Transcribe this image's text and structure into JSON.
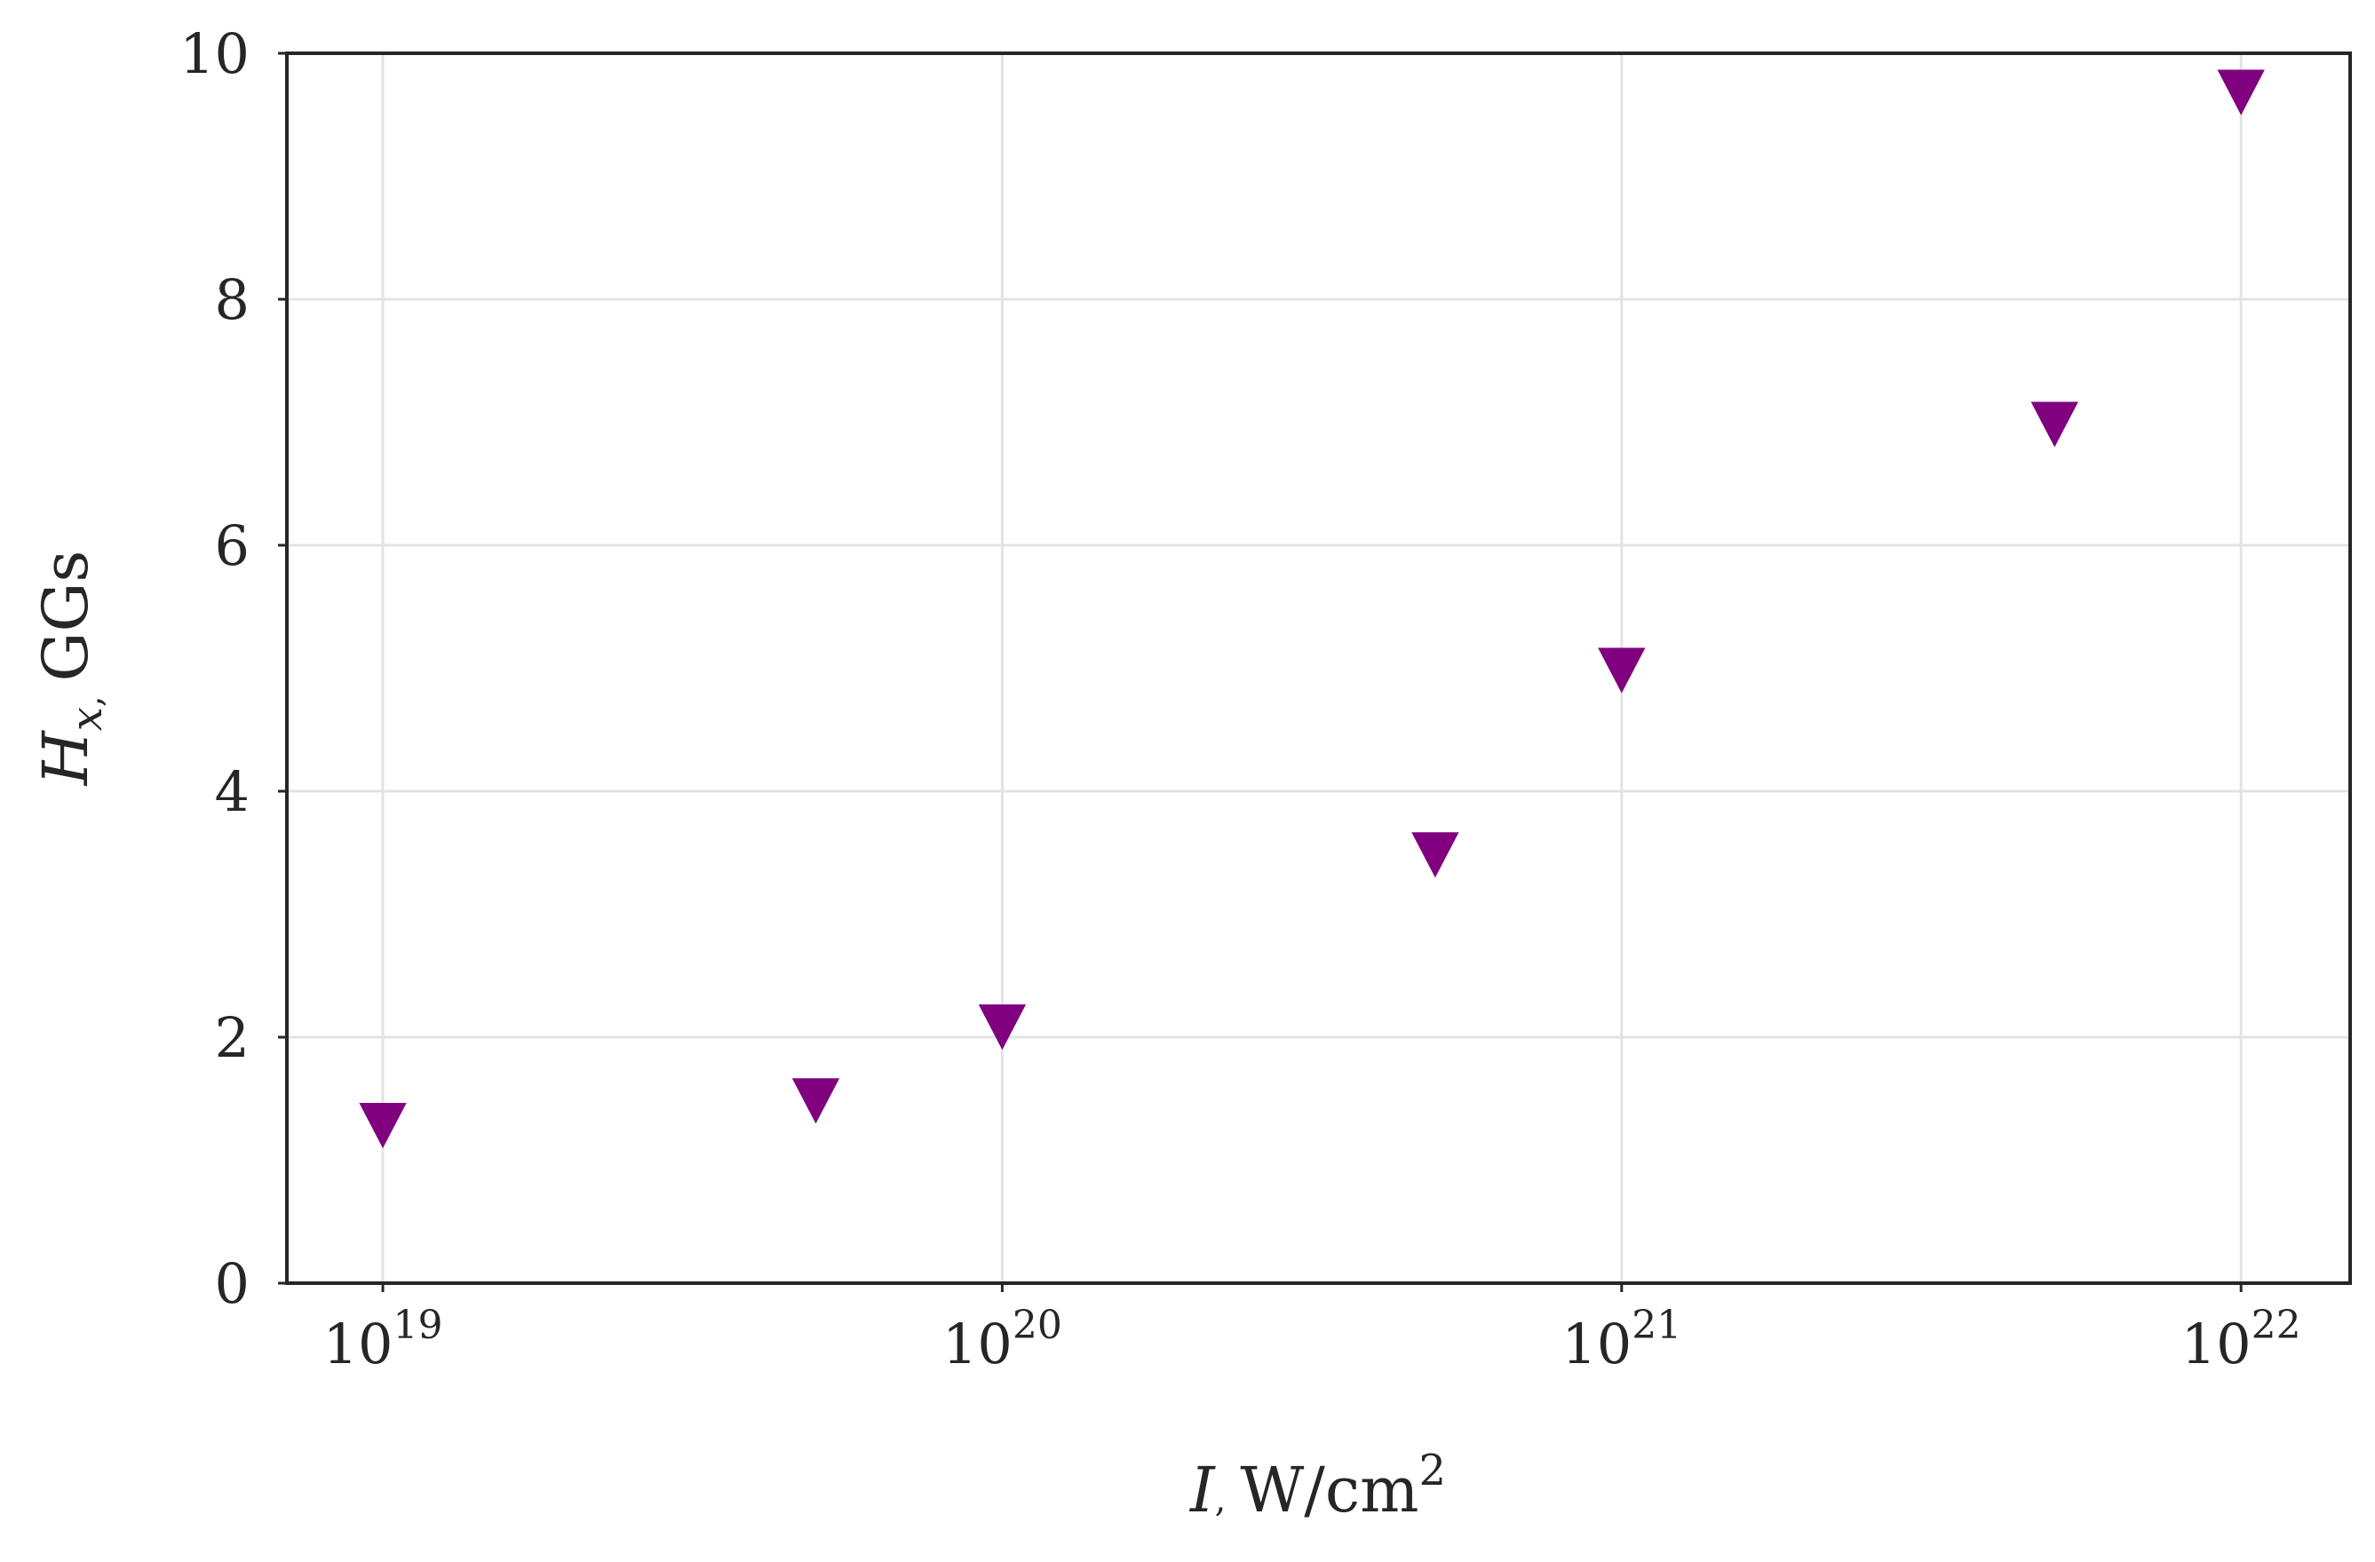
{
  "chart_data": {
    "type": "scatter",
    "title": "",
    "xlabel": {
      "symbol": "I",
      "separator": ",",
      "unit": "W/cm",
      "unit_exponent": "2"
    },
    "ylabel": {
      "symbol": "H",
      "subscript": "x",
      "separator": ",",
      "unit": "GGs"
    },
    "xscale": "log",
    "xlim": [
      7e+18,
      1.5e+22
    ],
    "ylim": [
      0,
      10
    ],
    "grid": true,
    "legend": "none",
    "x_ticks": [
      {
        "value": 1e+19,
        "base": "10",
        "exponent": "19"
      },
      {
        "value": 1e+20,
        "base": "10",
        "exponent": "20"
      },
      {
        "value": 1e+21,
        "base": "10",
        "exponent": "21"
      },
      {
        "value": 1e+22,
        "base": "10",
        "exponent": "22"
      }
    ],
    "y_ticks": [
      {
        "value": 0,
        "label": "0"
      },
      {
        "value": 2,
        "label": "2"
      },
      {
        "value": 4,
        "label": "4"
      },
      {
        "value": 6,
        "label": "6"
      },
      {
        "value": 8,
        "label": "8"
      },
      {
        "value": 10,
        "label": "10"
      }
    ],
    "series": [
      {
        "marker": "triangle-down",
        "color": "#800080",
        "points": [
          {
            "x": 1e+19,
            "y": 1.3
          },
          {
            "x": 5e+19,
            "y": 1.5
          },
          {
            "x": 1e+20,
            "y": 2.1
          },
          {
            "x": 5e+20,
            "y": 3.5
          },
          {
            "x": 1e+21,
            "y": 5.0
          },
          {
            "x": 5e+21,
            "y": 7.0
          },
          {
            "x": 1e+22,
            "y": 9.7
          }
        ]
      }
    ]
  }
}
